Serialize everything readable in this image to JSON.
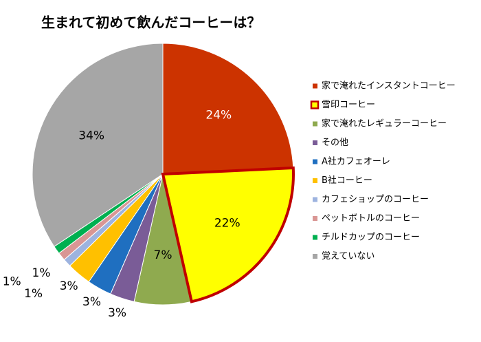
{
  "chart_data": {
    "type": "pie",
    "title": "生まれて初めて飲んだコーヒーは？",
    "categories": [
      "家で淹れたインスタントコーヒー",
      "雪印コーヒー",
      "家で淹れたレギュラーコーヒー",
      "その他",
      "A社カフェオーレ",
      "B社コーヒー",
      "カフェショップのコーヒー",
      "ペットボトルのコーヒー",
      "チルドカップのコーヒー",
      "覚えていない"
    ],
    "values": [
      24,
      22,
      7,
      3,
      3,
      3,
      1,
      1,
      1,
      34
    ],
    "value_labels": [
      "24%",
      "22%",
      "7%",
      "3%",
      "3%",
      "3%",
      "1%",
      "1%",
      "1%",
      "34%"
    ],
    "colors": [
      "#cc3300",
      "#ffff00",
      "#8faa4f",
      "#7a5c97",
      "#1f6fc0",
      "#ffc000",
      "#9db3df",
      "#d99694",
      "#00b050",
      "#a6a6a6"
    ],
    "highlight": 1,
    "highlight_edgecolor": "#c00000",
    "legend": "right"
  }
}
